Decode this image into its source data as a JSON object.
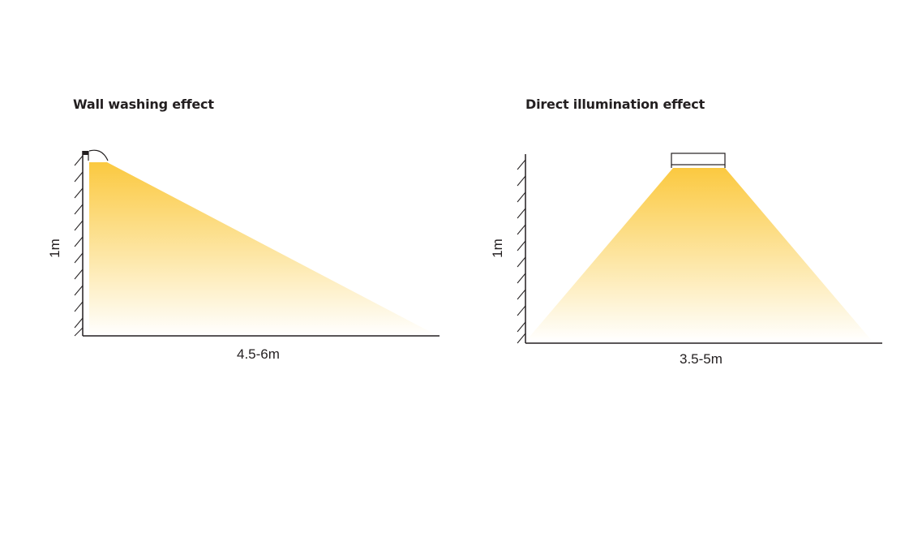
{
  "diagrams": [
    {
      "title": "Wall washing effect",
      "height_label": "1m",
      "distance_label": "4.5-6m"
    },
    {
      "title": "Direct illumination effect",
      "height_label": "1m",
      "distance_label": "3.5-5m"
    }
  ],
  "colors": {
    "light_top": "#fbc940",
    "light_bottom": "#ffffff",
    "line": "#231f20"
  }
}
